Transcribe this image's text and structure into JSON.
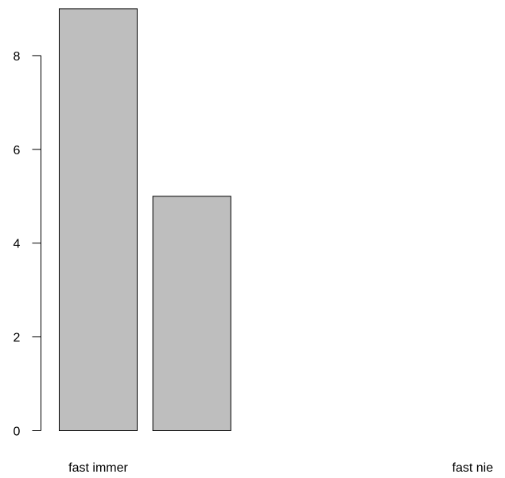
{
  "chart_data": {
    "type": "bar",
    "categories": [
      "fast immer",
      "",
      "",
      "",
      "fast nie"
    ],
    "values": [
      9,
      5,
      0,
      0,
      0
    ],
    "title": "",
    "xlabel": "",
    "ylabel": "",
    "ylim": [
      0,
      9
    ],
    "yticks": [
      0,
      2,
      4,
      6,
      8
    ],
    "yticklabels": [
      "0",
      "2",
      "4",
      "6",
      "8"
    ],
    "grid": false,
    "bar_color": "#bebebe",
    "bar_edge_color": "#000000"
  }
}
